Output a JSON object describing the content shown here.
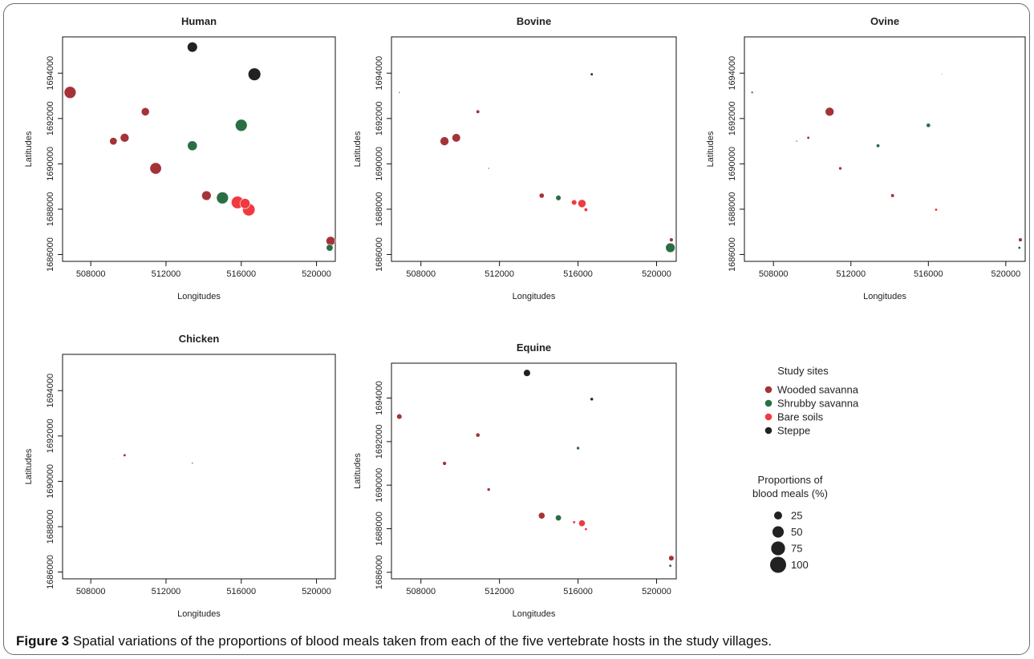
{
  "caption": {
    "label": "Figure 3",
    "text": "Spatial variations of the proportions of blood meals taken from each of the five vertebrate hosts in the study villages."
  },
  "chart_data": {
    "type": "scatter",
    "xlabel": "Longitudes",
    "ylabel": "Latitudes",
    "xlim": [
      506500,
      521000
    ],
    "ylim": [
      1685700,
      1695600
    ],
    "xticks": [
      508000,
      512000,
      516000,
      520000
    ],
    "yticks": [
      1686000,
      1688000,
      1690000,
      1692000,
      1694000
    ],
    "grid": false,
    "colors": {
      "Wooded savanna": "#a43338",
      "Shrubby savanna": "#2a6e44",
      "Bare soils": "#f03a3f",
      "Steppe": "#222222"
    },
    "legend": {
      "title": "Study sites",
      "items": [
        "Wooded savanna",
        "Shrubby savanna",
        "Bare soils",
        "Steppe"
      ],
      "size_title_line1": "Proportions of",
      "size_title_line2": "blood meals (%)",
      "size_items": [
        25,
        50,
        75,
        100
      ],
      "placement": "bottom-right"
    },
    "panels": [
      {
        "title": "Human",
        "points": [
          {
            "site": "Wooded savanna",
            "x": 506900,
            "y": 1693150,
            "value": 55
          },
          {
            "site": "Wooded savanna",
            "x": 509200,
            "y": 1691000,
            "value": 22
          },
          {
            "site": "Wooded savanna",
            "x": 509800,
            "y": 1691150,
            "value": 30
          },
          {
            "site": "Wooded savanna",
            "x": 510900,
            "y": 1692300,
            "value": 26
          },
          {
            "site": "Wooded savanna",
            "x": 511450,
            "y": 1689800,
            "value": 52
          },
          {
            "site": "Wooded savanna",
            "x": 514150,
            "y": 1688600,
            "value": 35
          },
          {
            "site": "Wooded savanna",
            "x": 520750,
            "y": 1686600,
            "value": 32
          },
          {
            "site": "Steppe",
            "x": 513400,
            "y": 1695150,
            "value": 40
          },
          {
            "site": "Steppe",
            "x": 516700,
            "y": 1693950,
            "value": 62
          },
          {
            "site": "Shrubby savanna",
            "x": 513400,
            "y": 1690800,
            "value": 37
          },
          {
            "site": "Shrubby savanna",
            "x": 516000,
            "y": 1691700,
            "value": 55
          },
          {
            "site": "Shrubby savanna",
            "x": 515000,
            "y": 1688500,
            "value": 55
          },
          {
            "site": "Shrubby savanna",
            "x": 520700,
            "y": 1686300,
            "value": 18
          },
          {
            "site": "Bare soils",
            "x": 515800,
            "y": 1688300,
            "value": 60
          },
          {
            "site": "Bare soils",
            "x": 516200,
            "y": 1688250,
            "value": 40
          },
          {
            "site": "Bare soils",
            "x": 516400,
            "y": 1687980,
            "value": 60
          }
        ]
      },
      {
        "title": "Bovine",
        "points": [
          {
            "site": "Wooded savanna",
            "x": 506900,
            "y": 1693150,
            "value": 1
          },
          {
            "site": "Wooded savanna",
            "x": 509200,
            "y": 1691000,
            "value": 30
          },
          {
            "site": "Wooded savanna",
            "x": 509800,
            "y": 1691150,
            "value": 28
          },
          {
            "site": "Wooded savanna",
            "x": 510900,
            "y": 1692300,
            "value": 5
          },
          {
            "site": "Wooded savanna",
            "x": 511450,
            "y": 1689800,
            "value": 1
          },
          {
            "site": "Wooded savanna",
            "x": 514150,
            "y": 1688600,
            "value": 10
          },
          {
            "site": "Wooded savanna",
            "x": 520750,
            "y": 1686650,
            "value": 6
          },
          {
            "site": "Steppe",
            "x": 516700,
            "y": 1693950,
            "value": 3
          },
          {
            "site": "Shrubby savanna",
            "x": 515000,
            "y": 1688500,
            "value": 11
          },
          {
            "site": "Shrubby savanna",
            "x": 520700,
            "y": 1686300,
            "value": 35
          },
          {
            "site": "Bare soils",
            "x": 515800,
            "y": 1688300,
            "value": 11
          },
          {
            "site": "Bare soils",
            "x": 516200,
            "y": 1688250,
            "value": 25
          },
          {
            "site": "Bare soils",
            "x": 516400,
            "y": 1687980,
            "value": 5
          }
        ]
      },
      {
        "title": "Ovine",
        "points": [
          {
            "site": "Wooded savanna",
            "x": 506900,
            "y": 1693150,
            "value": 2
          },
          {
            "site": "Wooded savanna",
            "x": 509200,
            "y": 1691000,
            "value": 1
          },
          {
            "site": "Wooded savanna",
            "x": 509800,
            "y": 1691150,
            "value": 3
          },
          {
            "site": "Wooded savanna",
            "x": 510900,
            "y": 1692300,
            "value": 30
          },
          {
            "site": "Wooded savanna",
            "x": 511450,
            "y": 1689800,
            "value": 4
          },
          {
            "site": "Wooded savanna",
            "x": 514150,
            "y": 1688600,
            "value": 5
          },
          {
            "site": "Wooded savanna",
            "x": 520750,
            "y": 1686650,
            "value": 6
          },
          {
            "site": "Steppe",
            "x": 516700,
            "y": 1693950,
            "value": 0.5
          },
          {
            "site": "Shrubby savanna",
            "x": 513400,
            "y": 1690800,
            "value": 5
          },
          {
            "site": "Shrubby savanna",
            "x": 516000,
            "y": 1691700,
            "value": 7
          },
          {
            "site": "Shrubby savanna",
            "x": 520700,
            "y": 1686300,
            "value": 3
          },
          {
            "site": "Bare soils",
            "x": 516400,
            "y": 1687980,
            "value": 3
          }
        ]
      },
      {
        "title": "Chicken",
        "points": [
          {
            "site": "Wooded savanna",
            "x": 509800,
            "y": 1691150,
            "value": 3
          },
          {
            "site": "Shrubby savanna",
            "x": 513400,
            "y": 1690800,
            "value": 1
          },
          {
            "site": "Bare soils",
            "x": 509200,
            "y": 1691000,
            "value": 0.4
          }
        ]
      },
      {
        "title": "Equine",
        "points": [
          {
            "site": "Wooded savanna",
            "x": 506900,
            "y": 1693150,
            "value": 11
          },
          {
            "site": "Wooded savanna",
            "x": 509200,
            "y": 1691000,
            "value": 6
          },
          {
            "site": "Wooded savanna",
            "x": 510900,
            "y": 1692300,
            "value": 7
          },
          {
            "site": "Wooded savanna",
            "x": 511450,
            "y": 1689800,
            "value": 4
          },
          {
            "site": "Wooded savanna",
            "x": 514150,
            "y": 1688600,
            "value": 17
          },
          {
            "site": "Wooded savanna",
            "x": 520750,
            "y": 1686650,
            "value": 11
          },
          {
            "site": "Steppe",
            "x": 513400,
            "y": 1695150,
            "value": 19
          },
          {
            "site": "Steppe",
            "x": 516700,
            "y": 1693950,
            "value": 4
          },
          {
            "site": "Shrubby savanna",
            "x": 516000,
            "y": 1691700,
            "value": 4
          },
          {
            "site": "Shrubby savanna",
            "x": 515000,
            "y": 1688500,
            "value": 14
          },
          {
            "site": "Shrubby savanna",
            "x": 520700,
            "y": 1686300,
            "value": 3
          },
          {
            "site": "Bare soils",
            "x": 515800,
            "y": 1688300,
            "value": 3
          },
          {
            "site": "Bare soils",
            "x": 516200,
            "y": 1688250,
            "value": 17
          },
          {
            "site": "Bare soils",
            "x": 516400,
            "y": 1687980,
            "value": 3
          }
        ]
      }
    ]
  }
}
